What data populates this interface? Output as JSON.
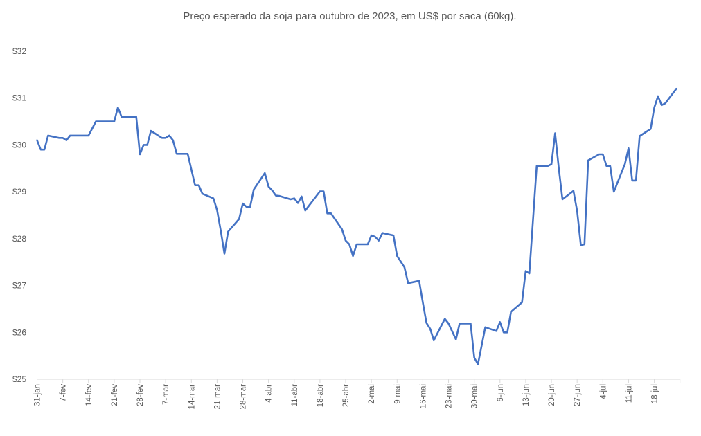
{
  "chart_data": {
    "type": "line",
    "title": "Preço esperado da soja para outubro de 2023, em US$ por saca (60kg).",
    "xlabel": "",
    "ylabel": "",
    "ylim": [
      25,
      32
    ],
    "xlim": [
      "2023-01-31",
      "2023-07-25"
    ],
    "grid": false,
    "legend": "none",
    "yticks": [
      "$25",
      "$26",
      "$27",
      "$28",
      "$29",
      "$30",
      "$31",
      "$32"
    ],
    "xticks": [
      "31-jan",
      "7-fev",
      "14-fev",
      "21-fev",
      "28-fev",
      "7-mar",
      "14-mar",
      "21-mar",
      "28-mar",
      "4-abr",
      "11-abr",
      "18-abr",
      "25-abr",
      "2-mai",
      "9-mai",
      "16-mai",
      "23-mai",
      "30-mai",
      "6-jun",
      "13-jun",
      "20-jun",
      "27-jun",
      "4-jul",
      "11-jul",
      "18-jul"
    ],
    "series_color": "#4472C4",
    "series": [
      {
        "x": [
          "2023-01-31",
          "2023-02-01",
          "2023-02-02",
          "2023-02-03",
          "2023-02-06",
          "2023-02-07",
          "2023-02-08",
          "2023-02-09",
          "2023-02-14",
          "2023-02-16",
          "2023-02-21",
          "2023-02-22",
          "2023-02-23",
          "2023-02-27",
          "2023-02-28",
          "2023-03-01",
          "2023-03-02",
          "2023-03-03",
          "2023-03-06",
          "2023-03-07",
          "2023-03-08",
          "2023-03-09",
          "2023-03-10",
          "2023-03-13",
          "2023-03-15",
          "2023-03-16",
          "2023-03-17",
          "2023-03-20",
          "2023-03-21",
          "2023-03-22",
          "2023-03-23",
          "2023-03-24",
          "2023-03-27",
          "2023-03-28",
          "2023-03-29",
          "2023-03-30",
          "2023-03-31",
          "2023-04-03",
          "2023-04-04",
          "2023-04-05",
          "2023-04-06",
          "2023-04-07",
          "2023-04-10",
          "2023-04-11",
          "2023-04-12",
          "2023-04-13",
          "2023-04-14",
          "2023-04-18",
          "2023-04-19",
          "2023-04-20",
          "2023-04-21",
          "2023-04-24",
          "2023-04-25",
          "2023-04-26",
          "2023-04-27",
          "2023-04-28",
          "2023-05-01",
          "2023-05-02",
          "2023-05-03",
          "2023-05-04",
          "2023-05-05",
          "2023-05-08",
          "2023-05-09",
          "2023-05-10",
          "2023-05-11",
          "2023-05-12",
          "2023-05-15",
          "2023-05-16",
          "2023-05-17",
          "2023-05-18",
          "2023-05-19",
          "2023-05-22",
          "2023-05-23",
          "2023-05-25",
          "2023-05-26",
          "2023-05-29",
          "2023-05-30",
          "2023-05-31",
          "2023-06-02",
          "2023-06-05",
          "2023-06-06",
          "2023-06-07",
          "2023-06-08",
          "2023-06-09",
          "2023-06-12",
          "2023-06-13",
          "2023-06-14",
          "2023-06-16",
          "2023-06-19",
          "2023-06-20",
          "2023-06-21",
          "2023-06-22",
          "2023-06-23",
          "2023-06-26",
          "2023-06-27",
          "2023-06-28",
          "2023-06-29",
          "2023-06-30",
          "2023-07-03",
          "2023-07-04",
          "2023-07-05",
          "2023-07-06",
          "2023-07-07",
          "2023-07-10",
          "2023-07-11",
          "2023-07-12",
          "2023-07-13",
          "2023-07-14",
          "2023-07-17",
          "2023-07-18",
          "2023-07-19",
          "2023-07-20",
          "2023-07-21",
          "2023-07-24"
        ],
        "y": [
          30.1,
          29.9,
          29.9,
          30.2,
          30.15,
          30.15,
          30.1,
          30.2,
          30.2,
          30.5,
          30.5,
          30.8,
          30.6,
          30.6,
          29.8,
          30.0,
          30.0,
          30.3,
          30.15,
          30.15,
          30.2,
          30.1,
          29.81,
          29.81,
          29.14,
          29.14,
          28.96,
          28.86,
          28.61,
          28.17,
          27.68,
          28.15,
          28.42,
          28.75,
          28.68,
          28.68,
          29.05,
          29.4,
          29.11,
          29.03,
          28.92,
          28.91,
          28.84,
          28.86,
          28.76,
          28.9,
          28.6,
          29.01,
          29.01,
          28.54,
          28.54,
          28.2,
          27.96,
          27.88,
          27.63,
          27.88,
          27.88,
          28.07,
          28.04,
          27.96,
          28.12,
          28.07,
          27.63,
          27.51,
          27.39,
          27.05,
          27.1,
          26.64,
          26.2,
          26.08,
          25.83,
          26.29,
          26.19,
          25.85,
          26.19,
          26.19,
          25.46,
          25.32,
          26.11,
          26.03,
          26.22,
          26.0,
          26.0,
          26.44,
          26.64,
          27.31,
          27.26,
          29.55,
          29.55,
          29.59,
          30.25,
          29.5,
          28.84,
          29.02,
          28.59,
          27.86,
          27.88,
          29.67,
          29.8,
          29.8,
          29.55,
          29.55,
          29.0,
          29.59,
          29.93,
          29.24,
          29.24,
          30.19,
          30.34,
          30.8,
          31.04,
          30.85,
          30.89,
          31.2
        ]
      }
    ]
  }
}
